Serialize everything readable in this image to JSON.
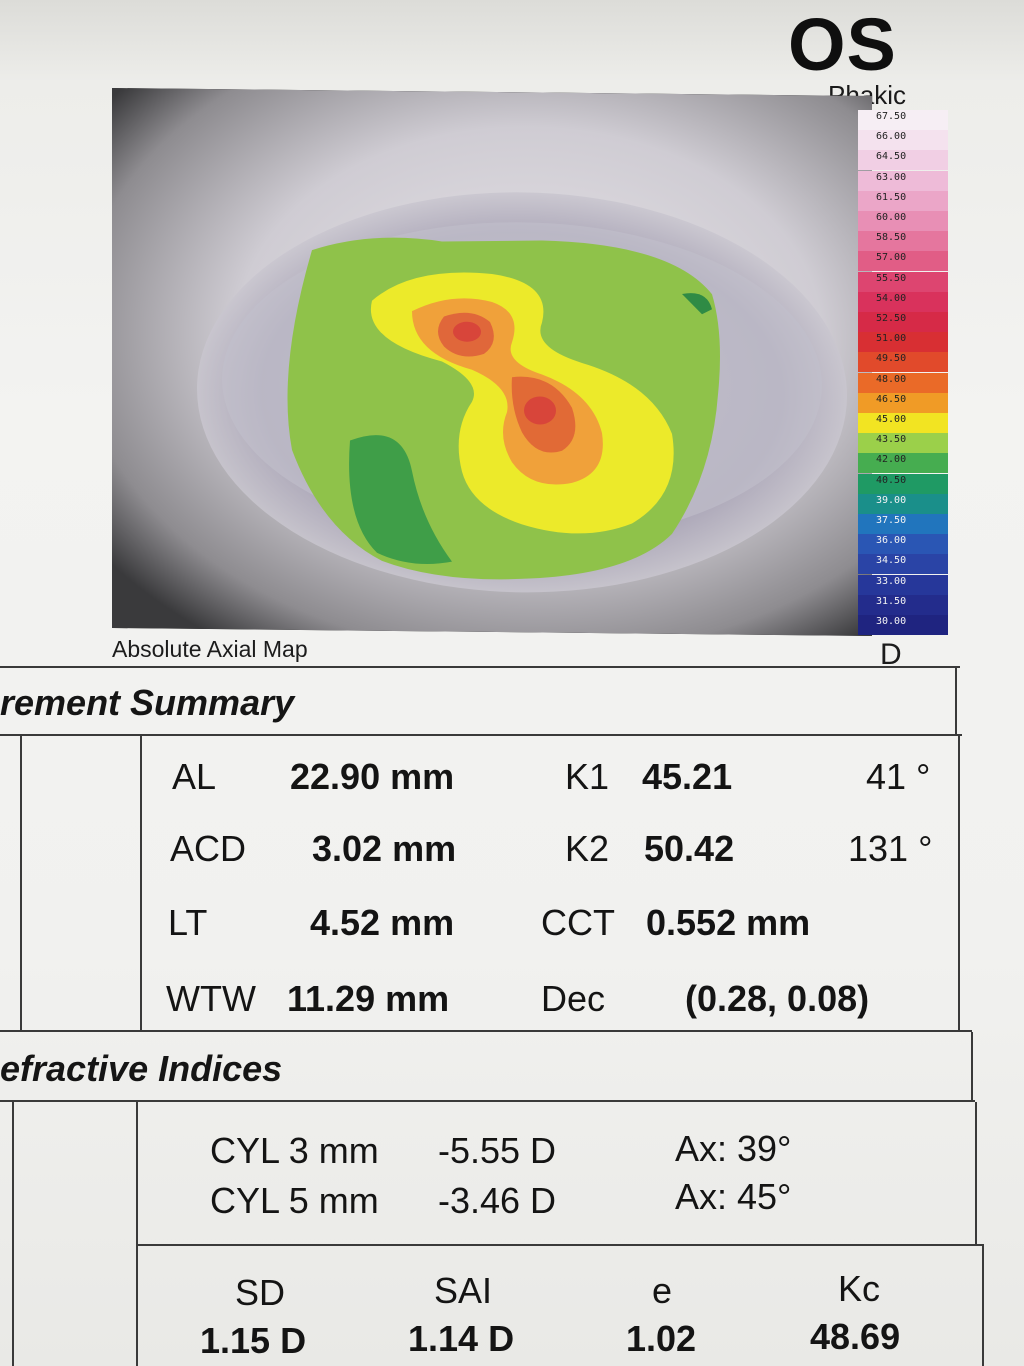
{
  "header": {
    "eye": "OS",
    "lens_status": "Phakic"
  },
  "map": {
    "caption": "Absolute Axial Map",
    "units": "D",
    "scale": [
      {
        "label": "67.50",
        "color": "#f6eef4"
      },
      {
        "label": "66.00",
        "color": "#f4e2ee"
      },
      {
        "label": "64.50",
        "color": "#f1cfe4"
      },
      {
        "label": "63.00",
        "color": "#eebbd8"
      },
      {
        "label": "61.50",
        "color": "#eba6c8"
      },
      {
        "label": "60.00",
        "color": "#e88fb5"
      },
      {
        "label": "58.50",
        "color": "#e5769e"
      },
      {
        "label": "57.00",
        "color": "#e15d86"
      },
      {
        "label": "55.50",
        "color": "#dd4570"
      },
      {
        "label": "54.00",
        "color": "#d9325c"
      },
      {
        "label": "52.50",
        "color": "#d62a47"
      },
      {
        "label": "51.00",
        "color": "#d82f33"
      },
      {
        "label": "49.50",
        "color": "#e14a2b"
      },
      {
        "label": "48.00",
        "color": "#ea6a28"
      },
      {
        "label": "46.50",
        "color": "#f09b26"
      },
      {
        "label": "45.00",
        "color": "#f2e422"
      },
      {
        "label": "43.50",
        "color": "#9bd04a"
      },
      {
        "label": "42.00",
        "color": "#46ad50"
      },
      {
        "label": "40.50",
        "color": "#1f9a64"
      },
      {
        "label": "39.00",
        "color": "#1a8f8a"
      },
      {
        "label": "37.50",
        "color": "#2175bd"
      },
      {
        "label": "36.00",
        "color": "#2a56b4"
      },
      {
        "label": "34.50",
        "color": "#2a44a6"
      },
      {
        "label": "33.00",
        "color": "#26379a"
      },
      {
        "label": "31.50",
        "color": "#232c8c"
      },
      {
        "label": "30.00",
        "color": "#1f2480"
      }
    ]
  },
  "summary": {
    "title": "rement Summary",
    "al": {
      "label": "AL",
      "value": "22.90 mm"
    },
    "acd": {
      "label": "ACD",
      "value": "3.02 mm"
    },
    "lt": {
      "label": "LT",
      "value": "4.52 mm"
    },
    "wtw": {
      "label": "WTW",
      "value": "11.29 mm"
    },
    "k1": {
      "label": "K1",
      "value": "45.21",
      "axis": "41 °"
    },
    "k2": {
      "label": "K2",
      "value": "50.42",
      "axis": "131 °"
    },
    "cct": {
      "label": "CCT",
      "value": "0.552 mm"
    },
    "dec": {
      "label": "Dec",
      "value": "(0.28, 0.08)"
    }
  },
  "refractive": {
    "title": "efractive Indices",
    "cyl3": {
      "label": "CYL 3 mm",
      "value": "-5.55 D",
      "axis": "Ax:  39°"
    },
    "cyl5": {
      "label": "CYL 5 mm",
      "value": "-3.46 D",
      "axis": "Ax:  45°"
    },
    "sd": {
      "label": "SD",
      "value": "1.15 D"
    },
    "sai": {
      "label": "SAI",
      "value": "1.14 D"
    },
    "e": {
      "label": "e",
      "value": "1.02"
    },
    "kc": {
      "label": "Kc",
      "value": "48.69"
    }
  }
}
